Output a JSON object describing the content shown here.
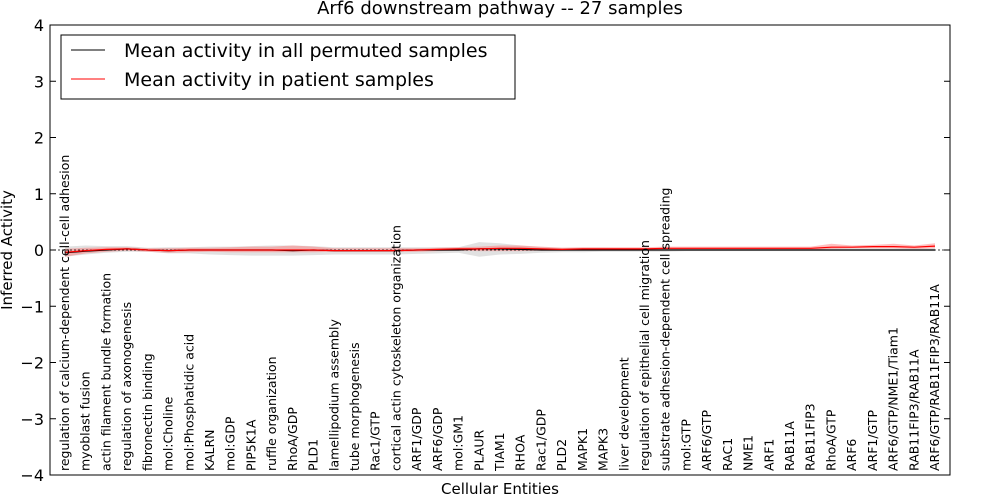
{
  "chart_data": {
    "type": "line",
    "title": "Arf6 downstream pathway -- 27 samples",
    "xlabel": "Cellular Entities",
    "ylabel": "Inferred Activity",
    "ylim": [
      -4,
      4
    ],
    "yticks": [
      -4,
      -3,
      -2,
      -1,
      0,
      1,
      2,
      3,
      4
    ],
    "ytick_labels": [
      "−4",
      "−3",
      "−2",
      "−1",
      "0",
      "1",
      "2",
      "3",
      "4"
    ],
    "legend_position": "top-left",
    "categories": [
      "regulation of calcium-dependent cell-cell adhesion",
      "myoblast fusion",
      "actin filament bundle formation",
      "regulation of axonogenesis",
      "fibronectin binding",
      "mol:Choline",
      "mol:Phosphatidic acid",
      "KALRN",
      "mol:GDP",
      "PIP5K1A",
      "ruffle organization",
      "RhoA/GDP",
      "PLD1",
      "lamellipodium assembly",
      "tube morphogenesis",
      "Rac1/GTP",
      "cortical actin cytoskeleton organization",
      "ARF1/GDP",
      "ARF6/GDP",
      "mol:GM1",
      "PLAUR",
      "TIAM1",
      "RHOA",
      "Rac1/GDP",
      "PLD2",
      "MAPK1",
      "MAPK3",
      "liver development",
      "regulation of epithelial cell migration",
      "substrate adhesion-dependent cell spreading",
      "mol:GTP",
      "ARF6/GTP",
      "RAC1",
      "NME1",
      "ARF1",
      "RAB11A",
      "RAB11FIP3",
      "RhoA/GTP",
      "ARF6",
      "ARF1/GTP",
      "ARF6/GTP/NME1/Tiam1",
      "RAB11FIP3/RAB11A",
      "ARF6/GTP/RAB11FIP3/RAB11A"
    ],
    "series": [
      {
        "name": "Mean activity in all permuted samples",
        "color": "#000000",
        "values": [
          -0.05,
          -0.02,
          0.0,
          0.02,
          0.0,
          -0.01,
          0.0,
          0.0,
          0.0,
          0.0,
          0.0,
          -0.01,
          0.0,
          -0.01,
          -0.01,
          -0.01,
          -0.01,
          0.0,
          0.0,
          0.0,
          0.02,
          0.02,
          0.01,
          0.0,
          0.0,
          0.0,
          0.0,
          0.0,
          0.0,
          0.0,
          0.0,
          0.0,
          0.0,
          0.0,
          0.0,
          0.0,
          0.0,
          0.0,
          0.0,
          0.0,
          0.0,
          0.0,
          0.0
        ],
        "band_low": [
          -0.12,
          -0.08,
          -0.05,
          -0.03,
          -0.03,
          -0.06,
          -0.06,
          -0.08,
          -0.09,
          -0.1,
          -0.1,
          -0.1,
          -0.09,
          -0.08,
          -0.08,
          -0.08,
          -0.08,
          -0.07,
          -0.06,
          -0.05,
          -0.12,
          -0.08,
          -0.07,
          -0.05,
          -0.04,
          -0.04,
          -0.03,
          -0.03,
          -0.03,
          -0.03,
          -0.02,
          -0.02,
          -0.02,
          -0.02,
          -0.02,
          -0.02,
          -0.02,
          -0.02,
          -0.02,
          -0.02,
          -0.02,
          -0.02,
          -0.02
        ],
        "band_high": [
          0.06,
          0.08,
          0.07,
          0.07,
          0.04,
          0.05,
          0.05,
          0.06,
          0.06,
          0.07,
          0.08,
          0.08,
          0.07,
          0.05,
          0.05,
          0.05,
          0.05,
          0.05,
          0.05,
          0.05,
          0.14,
          0.12,
          0.08,
          0.05,
          0.04,
          0.04,
          0.04,
          0.03,
          0.03,
          0.03,
          0.03,
          0.03,
          0.03,
          0.03,
          0.03,
          0.03,
          0.03,
          0.03,
          0.03,
          0.03,
          0.03,
          0.03,
          0.03
        ]
      },
      {
        "name": "Mean activity in patient samples",
        "color": "#ff0000",
        "values": [
          -0.04,
          -0.01,
          0.01,
          0.02,
          0.0,
          -0.01,
          0.0,
          0.0,
          0.0,
          0.0,
          0.0,
          0.0,
          0.0,
          -0.01,
          -0.01,
          -0.01,
          -0.01,
          0.0,
          0.01,
          0.02,
          0.02,
          0.03,
          0.03,
          0.02,
          0.01,
          0.02,
          0.02,
          0.02,
          0.02,
          0.03,
          0.03,
          0.03,
          0.03,
          0.03,
          0.03,
          0.03,
          0.03,
          0.05,
          0.05,
          0.06,
          0.06,
          0.05,
          0.07
        ],
        "band_low": [
          -0.12,
          -0.06,
          -0.03,
          -0.01,
          -0.03,
          -0.05,
          -0.04,
          -0.03,
          -0.04,
          -0.04,
          -0.04,
          -0.04,
          -0.04,
          -0.03,
          -0.03,
          -0.03,
          -0.03,
          -0.03,
          -0.02,
          -0.01,
          -0.02,
          -0.02,
          -0.02,
          -0.01,
          -0.01,
          0.0,
          0.0,
          0.0,
          0.0,
          0.0,
          0.0,
          0.0,
          0.0,
          0.0,
          0.0,
          0.0,
          0.0,
          0.02,
          0.03,
          0.03,
          0.03,
          0.02,
          0.03
        ],
        "band_high": [
          0.02,
          0.04,
          0.05,
          0.05,
          0.03,
          0.03,
          0.04,
          0.04,
          0.05,
          0.06,
          0.06,
          0.08,
          0.06,
          0.03,
          0.03,
          0.03,
          0.03,
          0.03,
          0.04,
          0.05,
          0.06,
          0.08,
          0.08,
          0.06,
          0.04,
          0.05,
          0.05,
          0.05,
          0.05,
          0.06,
          0.06,
          0.06,
          0.06,
          0.06,
          0.06,
          0.06,
          0.06,
          0.11,
          0.08,
          0.09,
          0.11,
          0.08,
          0.12
        ]
      }
    ]
  }
}
